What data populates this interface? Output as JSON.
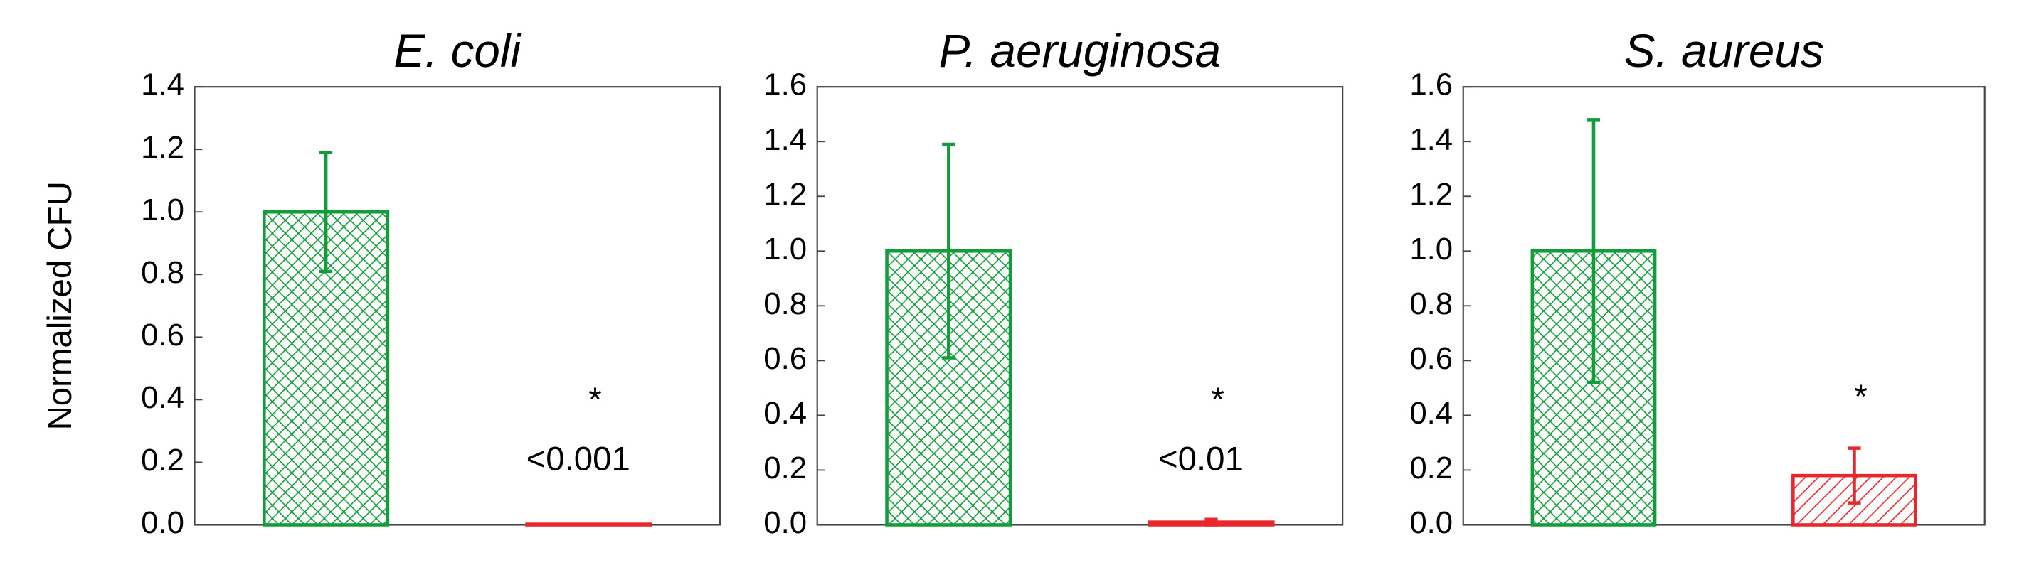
{
  "chart_data": [
    {
      "type": "bar",
      "title": "E. coli",
      "ylabel": "Normalized CFU",
      "values": [
        1.0,
        0.002
      ],
      "errors": [
        0.19,
        0
      ],
      "colors": [
        "#139c3b",
        "#e8262b"
      ],
      "hatches": [
        "cross",
        "diagonal"
      ],
      "annotations": [
        "*",
        "<0.001"
      ],
      "ylim": [
        0,
        1.4
      ],
      "yticks": [
        {
          "value": 0,
          "label": "0.0"
        },
        0.2,
        0.4,
        0.6,
        0.8,
        {
          "value": 1,
          "label": "1.0"
        },
        1.2,
        1.4
      ]
    },
    {
      "type": "bar",
      "title": "P. aeruginosa",
      "values": [
        1.0,
        0.01
      ],
      "errors": [
        0.39,
        0.01
      ],
      "colors": [
        "#139c3b",
        "#e8262b"
      ],
      "hatches": [
        "cross",
        "diagonal"
      ],
      "annotations": [
        "*",
        "<0.01"
      ],
      "ylim": [
        0,
        1.6
      ],
      "yticks": [
        {
          "value": 0,
          "label": "0.0"
        },
        0.2,
        0.4,
        0.6,
        0.8,
        {
          "value": 1,
          "label": "1.0"
        },
        1.2,
        1.4,
        1.6
      ]
    },
    {
      "type": "bar",
      "title": "S. aureus",
      "values": [
        1.0,
        0.18
      ],
      "errors": [
        0.48,
        0.1
      ],
      "colors": [
        "#139c3b",
        "#e8262b"
      ],
      "hatches": [
        "cross",
        "diagonal"
      ],
      "annotations": [
        "*"
      ],
      "ylim": [
        0,
        1.6
      ],
      "yticks": [
        {
          "value": 0,
          "label": "0.0"
        },
        0.2,
        0.4,
        0.6,
        0.8,
        {
          "value": 1,
          "label": "1.0"
        },
        1.2,
        1.4,
        1.6
      ]
    }
  ]
}
